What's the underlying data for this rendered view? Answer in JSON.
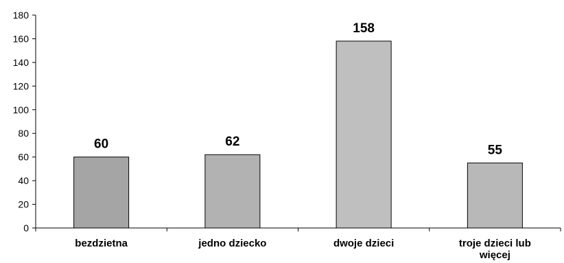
{
  "chart_data": {
    "type": "bar",
    "title": "",
    "xlabel": "",
    "ylabel": "",
    "ylim": [
      0,
      180
    ],
    "yticks": [
      0,
      20,
      40,
      60,
      80,
      100,
      120,
      140,
      160,
      180
    ],
    "ytick_labels": [
      "0",
      "20",
      "40",
      "60",
      "80",
      "100",
      "120",
      "140",
      "160",
      "180"
    ],
    "grid": false,
    "legend": "none",
    "categories": [
      "bezdzietna",
      "jedno dziecko",
      "dwoje dzieci",
      "troje dzieci lub więcej"
    ],
    "category_label_lines": [
      [
        "bezdzietna"
      ],
      [
        "jedno dziecko"
      ],
      [
        "dwoje dzieci"
      ],
      [
        "troje dzieci lub",
        "więcej"
      ]
    ],
    "values": [
      60,
      62,
      158,
      55
    ],
    "data_labels": [
      "60",
      "62",
      "158",
      "55"
    ],
    "bar_colors": [
      "#a5a5a5",
      "#b2b2b2",
      "#bfbfbf",
      "#b8b8b8"
    ]
  }
}
